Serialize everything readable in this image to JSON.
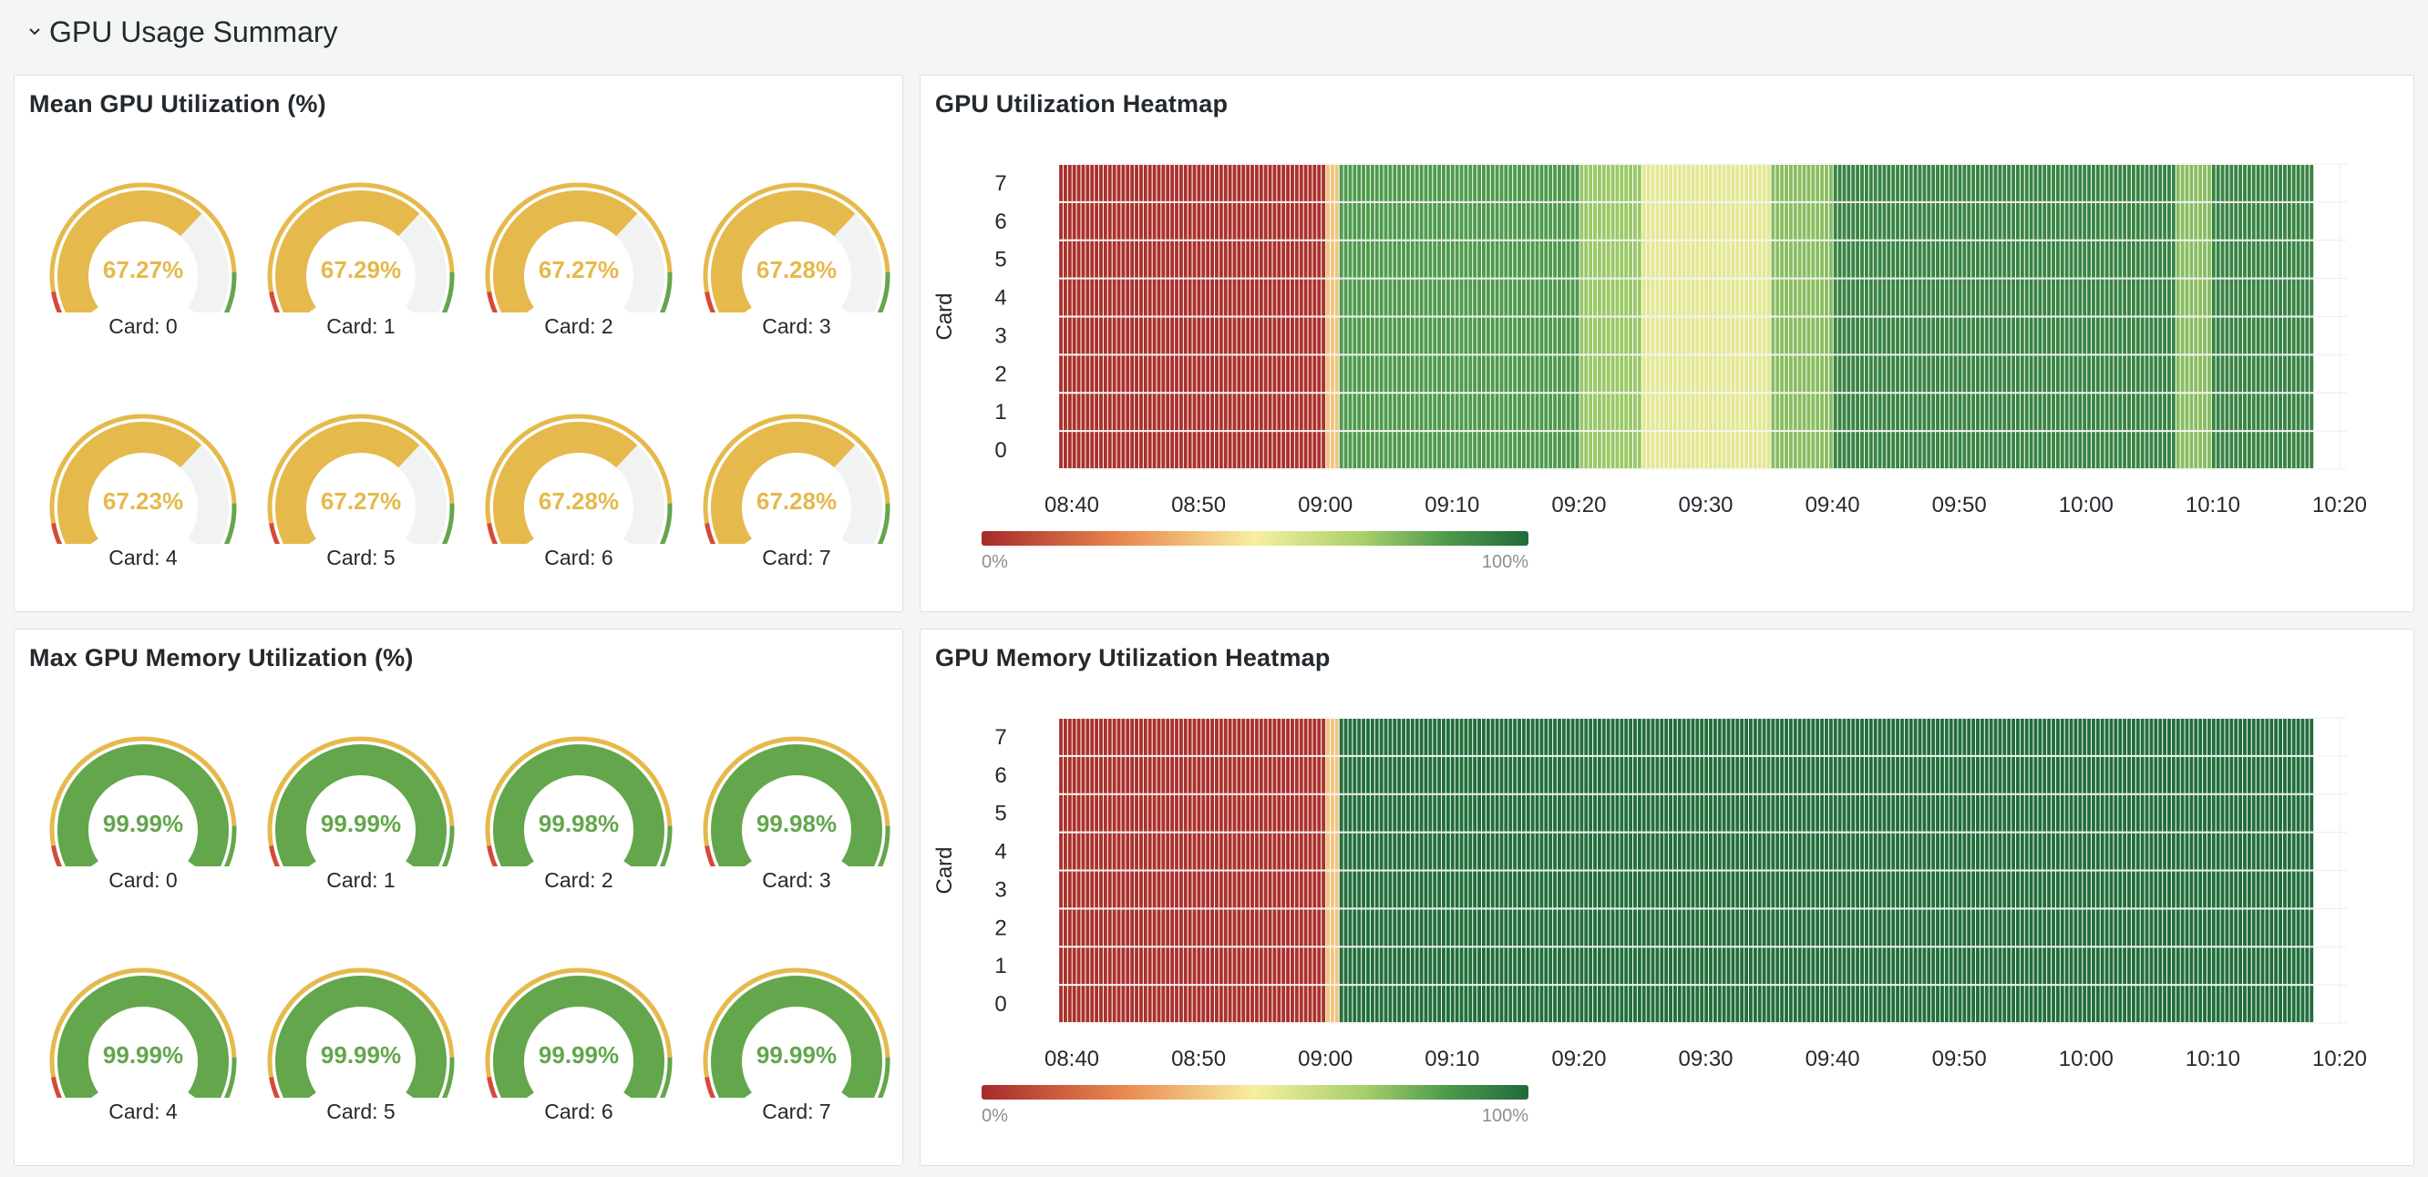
{
  "row": {
    "title": "GPU Usage Summary"
  },
  "colors": {
    "gauge_yellow": "#e5b94b",
    "gauge_green": "#63a64c",
    "gauge_red": "#d44a3a",
    "gauge_track": "#f1f2f2",
    "heat_low": "#a52a2a",
    "heat_mid": "#f5f3a3",
    "heat_high": "#1f6b3a"
  },
  "mean_gpu": {
    "title": "Mean GPU Utilization (%)",
    "gauges": [
      {
        "label": "Card: 0",
        "value": "67.27%",
        "fraction": 0.6727
      },
      {
        "label": "Card: 1",
        "value": "67.29%",
        "fraction": 0.6729
      },
      {
        "label": "Card: 2",
        "value": "67.27%",
        "fraction": 0.6727
      },
      {
        "label": "Card: 3",
        "value": "67.28%",
        "fraction": 0.6728
      },
      {
        "label": "Card: 4",
        "value": "67.23%",
        "fraction": 0.6723
      },
      {
        "label": "Card: 5",
        "value": "67.27%",
        "fraction": 0.6727
      },
      {
        "label": "Card: 6",
        "value": "67.28%",
        "fraction": 0.6728
      },
      {
        "label": "Card: 7",
        "value": "67.28%",
        "fraction": 0.6728
      }
    ]
  },
  "max_mem": {
    "title": "Max GPU Memory Utilization (%)",
    "gauges": [
      {
        "label": "Card: 0",
        "value": "99.99%",
        "fraction": 0.9999
      },
      {
        "label": "Card: 1",
        "value": "99.99%",
        "fraction": 0.9999
      },
      {
        "label": "Card: 2",
        "value": "99.98%",
        "fraction": 0.9998
      },
      {
        "label": "Card: 3",
        "value": "99.98%",
        "fraction": 0.9998
      },
      {
        "label": "Card: 4",
        "value": "99.99%",
        "fraction": 0.9999
      },
      {
        "label": "Card: 5",
        "value": "99.99%",
        "fraction": 0.9999
      },
      {
        "label": "Card: 6",
        "value": "99.99%",
        "fraction": 0.9999
      },
      {
        "label": "Card: 7",
        "value": "99.99%",
        "fraction": 0.9999
      }
    ]
  },
  "gauge_thresholds": {
    "red_until": 0.1,
    "yellow_until": 0.85
  },
  "heat_util": {
    "title": "GPU Utilization Heatmap",
    "ylabel": "Card",
    "yticks": [
      "0",
      "1",
      "2",
      "3",
      "4",
      "5",
      "6",
      "7"
    ],
    "xticks": [
      "08:40",
      "08:50",
      "09:00",
      "09:10",
      "09:20",
      "09:30",
      "09:40",
      "09:50",
      "10:00",
      "10:10",
      "10:20"
    ],
    "legend_min": "0%",
    "legend_max": "100%"
  },
  "heat_mem": {
    "title": "GPU Memory Utilization Heatmap",
    "ylabel": "Card",
    "yticks": [
      "0",
      "1",
      "2",
      "3",
      "4",
      "5",
      "6",
      "7"
    ],
    "xticks": [
      "08:40",
      "08:50",
      "09:00",
      "09:10",
      "09:20",
      "09:30",
      "09:40",
      "09:50",
      "10:00",
      "10:10",
      "10:20"
    ],
    "legend_min": "0%",
    "legend_max": "100%"
  },
  "chart_data": [
    {
      "type": "heatmap",
      "title": "GPU Utilization Heatmap",
      "ylabel": "Card",
      "y": [
        "0",
        "1",
        "2",
        "3",
        "4",
        "5",
        "6",
        "7"
      ],
      "x_range": [
        "08:39",
        "10:18"
      ],
      "segments": [
        {
          "from": "08:39",
          "to": "09:00",
          "value_pct": 2
        },
        {
          "from": "09:00",
          "to": "09:01",
          "value_pct": 40
        },
        {
          "from": "09:01",
          "to": "09:20",
          "value_pct": 85
        },
        {
          "from": "09:20",
          "to": "09:25",
          "value_pct": 72
        },
        {
          "from": "09:25",
          "to": "09:35",
          "value_pct": 55
        },
        {
          "from": "09:35",
          "to": "09:40",
          "value_pct": 75
        },
        {
          "from": "09:40",
          "to": "10:07",
          "value_pct": 92
        },
        {
          "from": "10:07",
          "to": "10:10",
          "value_pct": 75
        },
        {
          "from": "10:10",
          "to": "10:18",
          "value_pct": 92
        }
      ],
      "color_scale": [
        0,
        100
      ]
    },
    {
      "type": "heatmap",
      "title": "GPU Memory Utilization Heatmap",
      "ylabel": "Card",
      "y": [
        "0",
        "1",
        "2",
        "3",
        "4",
        "5",
        "6",
        "7"
      ],
      "x_range": [
        "08:39",
        "10:18"
      ],
      "segments": [
        {
          "from": "08:39",
          "to": "09:00",
          "value_pct": 2
        },
        {
          "from": "09:00",
          "to": "09:01",
          "value_pct": 40
        },
        {
          "from": "09:01",
          "to": "10:18",
          "value_pct": 99
        }
      ],
      "color_scale": [
        0,
        100
      ]
    }
  ]
}
